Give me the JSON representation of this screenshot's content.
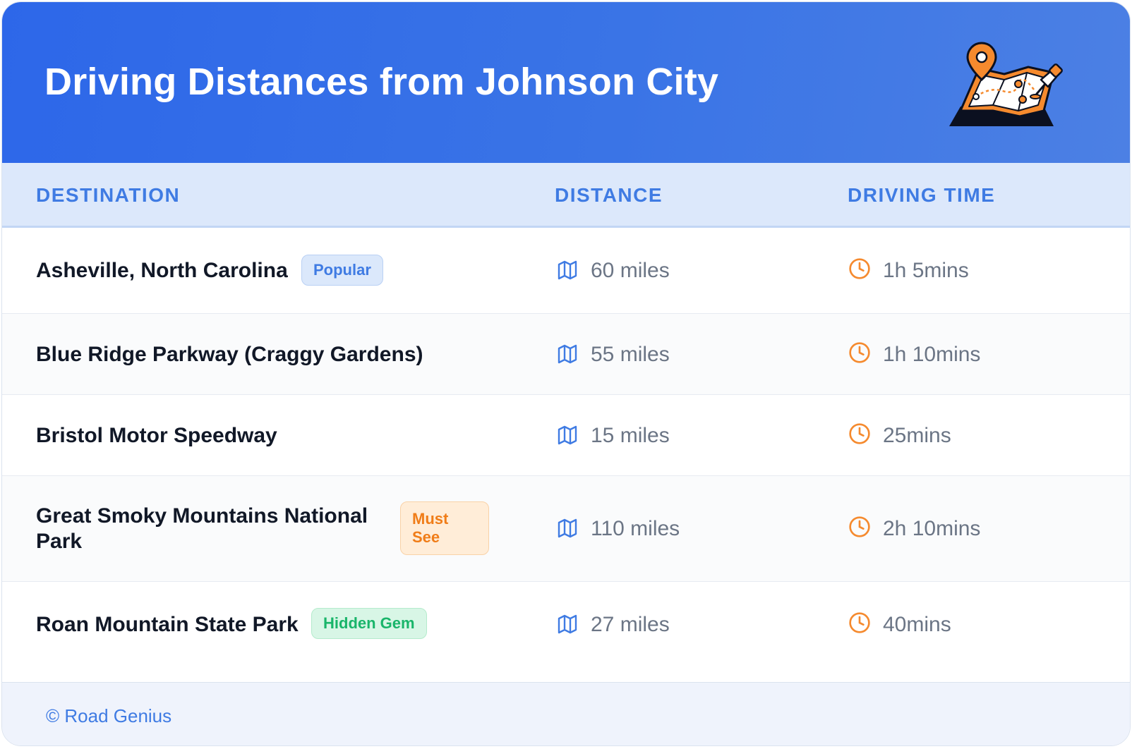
{
  "header": {
    "title": "Driving Distances from Johnson City",
    "illustration_icon": "map-with-pins-icon",
    "background_color": "#2d67e9"
  },
  "columns": {
    "destination": "DESTINATION",
    "distance": "DISTANCE",
    "driving_time": "DRIVING TIME"
  },
  "icons": {
    "distance": "map-icon",
    "time": "clock-icon"
  },
  "rows": [
    {
      "destination": "Asheville, North Carolina",
      "badge": "Popular",
      "distance": "60 miles",
      "time": "1h 5mins"
    },
    {
      "destination": "Blue Ridge Parkway (Craggy Gardens)",
      "badge": "",
      "distance": "55 miles",
      "time": "1h 10mins"
    },
    {
      "destination": "Bristol Motor Speedway",
      "badge": "",
      "distance": "15 miles",
      "time": "25mins"
    },
    {
      "destination": "Great Smoky Mountains National Park",
      "badge": "Must See",
      "distance": "110 miles",
      "time": "2h 10mins"
    },
    {
      "destination": "Roan Mountain State Park",
      "badge": "Hidden Gem",
      "distance": "27 miles",
      "time": "40mins"
    }
  ],
  "badge_colors": {
    "popular": "#3f7be3",
    "must_see": "#f07d18",
    "hidden_gem": "#19b56a"
  },
  "footer": {
    "credit": "© Road Genius"
  }
}
